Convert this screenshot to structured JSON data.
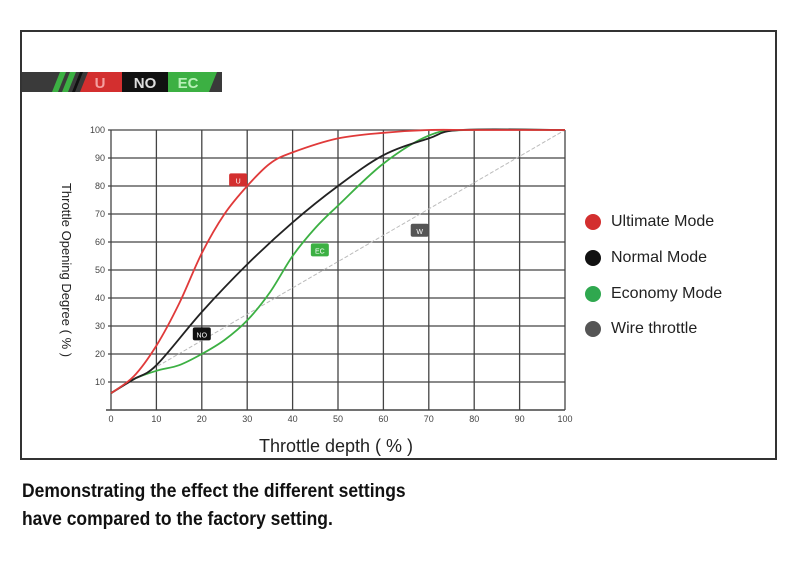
{
  "banner": {
    "labels": [
      "U",
      "NO",
      "EC"
    ]
  },
  "chart_data": {
    "type": "line",
    "xlabel": "Throttle depth ( % )",
    "ylabel": "Throttle Opening Degree ( % )",
    "xlim": [
      0,
      100
    ],
    "ylim": [
      0,
      100
    ],
    "xticks": [
      0,
      10,
      20,
      30,
      40,
      50,
      60,
      70,
      80,
      90,
      100
    ],
    "yticks": [
      10,
      20,
      30,
      40,
      50,
      60,
      70,
      80,
      90,
      100
    ],
    "grid": true,
    "legend_position": "right",
    "series": [
      {
        "name": "Ultimate Mode",
        "tag": "U",
        "color": "#e03a3a",
        "x": [
          0,
          5,
          10,
          15,
          20,
          25,
          30,
          35,
          40,
          50,
          60,
          70,
          80,
          100
        ],
        "y": [
          6,
          12,
          23,
          38,
          56,
          70,
          80,
          88,
          92,
          97,
          99,
          100,
          100,
          100
        ]
      },
      {
        "name": "Normal Mode",
        "tag": "NO",
        "color": "#222222",
        "x": [
          0,
          5,
          10,
          20,
          30,
          40,
          50,
          60,
          70,
          77,
          100
        ],
        "y": [
          6,
          11,
          16,
          35,
          52,
          67,
          80,
          91,
          97,
          100,
          100
        ]
      },
      {
        "name": "Economy Mode",
        "tag": "EC",
        "color": "#3cb043",
        "x": [
          0,
          5,
          10,
          15,
          20,
          25,
          30,
          35,
          40,
          45,
          50,
          60,
          70,
          78,
          100
        ],
        "y": [
          6,
          11,
          14,
          16,
          20,
          25,
          32,
          42,
          55,
          65,
          73,
          88,
          98,
          100,
          100
        ]
      },
      {
        "name": "Wire throttle",
        "tag": "W",
        "color": "#bbbbbb",
        "x": [
          0,
          100
        ],
        "y": [
          6,
          100
        ]
      }
    ],
    "tag_positions": [
      [
        28,
        82
      ],
      [
        20,
        27
      ],
      [
        46,
        57
      ],
      [
        68,
        64
      ]
    ]
  },
  "caption": [
    "Demonstrating the effect the different settings",
    "have compared to the factory setting."
  ],
  "colors": {
    "ultimate": "#d32f2f",
    "normal": "#111111",
    "economy": "#2fa84f",
    "wire": "#555555"
  }
}
